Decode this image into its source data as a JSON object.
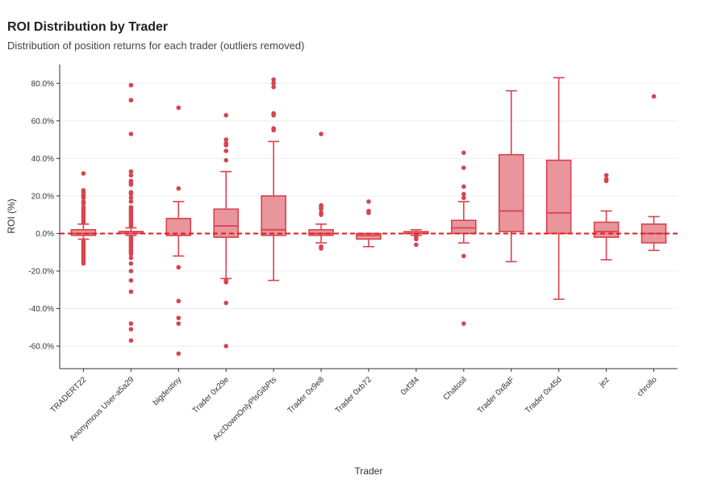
{
  "header": {
    "title": "ROI Distribution by Trader",
    "subtitle": "Distribution of position returns for each trader (outliers removed)"
  },
  "chart_data": {
    "type": "box",
    "title": "ROI Distribution by Trader",
    "subtitle": "Distribution of position returns for each trader (outliers removed)",
    "xlabel": "Trader",
    "ylabel": "ROI (%)",
    "ylim": [
      -72,
      90
    ],
    "yticks": [
      -60,
      -40,
      -20,
      0,
      20,
      40,
      60,
      80
    ],
    "ytick_labels": [
      "-60.0%",
      "-40.0%",
      "-20.0%",
      "0.0%",
      "20.0%",
      "40.0%",
      "60.0%",
      "80.0%"
    ],
    "reference_line": 0,
    "colors": {
      "box_fill": "#e8959c",
      "box_stroke": "#d9434f",
      "reference": "#e31a1c",
      "grid": "#eeeeee"
    },
    "categories": [
      "TRADERT22",
      "Anonymous User-a5a29",
      "bigdestiny",
      "Trader 0x29e",
      "AccDownOnlyPlsGibPts",
      "Trader 0x9e8",
      "Trader 0xb72",
      "0xf3f4",
      "Chatosil",
      "Trader 0x8aF",
      "Trader 0x45d",
      "jez",
      "chrollo"
    ],
    "boxes": [
      {
        "whisker_low": -3,
        "q1": -1,
        "median": 0,
        "q3": 2,
        "whisker_high": 5,
        "outliers": [
          32,
          23,
          22,
          21,
          20,
          19,
          17,
          16,
          14,
          13,
          12,
          11,
          10,
          9,
          8,
          7,
          6,
          -4,
          -5,
          -6,
          -7,
          -8,
          -9,
          -10,
          -11,
          -12,
          -13,
          -14,
          -15,
          -16
        ]
      },
      {
        "whisker_low": -1,
        "q1": 0,
        "median": 1,
        "q3": 1,
        "whisker_high": 3,
        "outliers": [
          79,
          71,
          53,
          33,
          31,
          28,
          27,
          26,
          22,
          21,
          19,
          17,
          14,
          13,
          12,
          11,
          10,
          9,
          8,
          7,
          6,
          5,
          4,
          -2,
          -3,
          -4,
          -5,
          -6,
          -7,
          -8,
          -9,
          -10,
          -11,
          -13,
          -16,
          -20,
          -25,
          -31,
          -48,
          -51,
          -57
        ]
      },
      {
        "whisker_low": -12,
        "q1": -1,
        "median": -1,
        "q3": 8,
        "whisker_high": 17,
        "outliers": [
          67,
          24,
          -18,
          -36,
          -45,
          -48,
          -64
        ]
      },
      {
        "whisker_low": -24,
        "q1": -2,
        "median": 4,
        "q3": 13,
        "whisker_high": 33,
        "outliers": [
          63,
          50,
          48,
          47,
          44,
          39,
          -25,
          -26,
          -37,
          -60
        ]
      },
      {
        "whisker_low": -25,
        "q1": -1,
        "median": 2,
        "q3": 20,
        "whisker_high": 49,
        "outliers": [
          82,
          80,
          78,
          64,
          63,
          56,
          55
        ]
      },
      {
        "whisker_low": -5,
        "q1": -1,
        "median": 0,
        "q3": 2,
        "whisker_high": 5,
        "outliers": [
          53,
          15,
          14,
          13,
          11,
          10,
          -7,
          -8
        ]
      },
      {
        "whisker_low": -7,
        "q1": -3,
        "median": -1,
        "q3": 0,
        "whisker_high": 0,
        "outliers": [
          17,
          12,
          11
        ]
      },
      {
        "whisker_low": -1,
        "q1": 0,
        "median": 0,
        "q3": 1,
        "whisker_high": 2,
        "outliers": [
          -1,
          -2,
          -3,
          -6
        ]
      },
      {
        "whisker_low": -5,
        "q1": 0,
        "median": 3,
        "q3": 7,
        "whisker_high": 17,
        "outliers": [
          43,
          35,
          25,
          21,
          19,
          -12,
          -48
        ]
      },
      {
        "whisker_low": -15,
        "q1": 1,
        "median": 12,
        "q3": 42,
        "whisker_high": 76,
        "outliers": []
      },
      {
        "whisker_low": -35,
        "q1": 0,
        "median": 11,
        "q3": 39,
        "whisker_high": 83,
        "outliers": []
      },
      {
        "whisker_low": -14,
        "q1": -2,
        "median": 1,
        "q3": 6,
        "whisker_high": 12,
        "outliers": [
          31,
          29,
          28
        ]
      },
      {
        "whisker_low": -9,
        "q1": -5,
        "median": 0,
        "q3": 5,
        "whisker_high": 9,
        "outliers": [
          73
        ]
      }
    ]
  }
}
